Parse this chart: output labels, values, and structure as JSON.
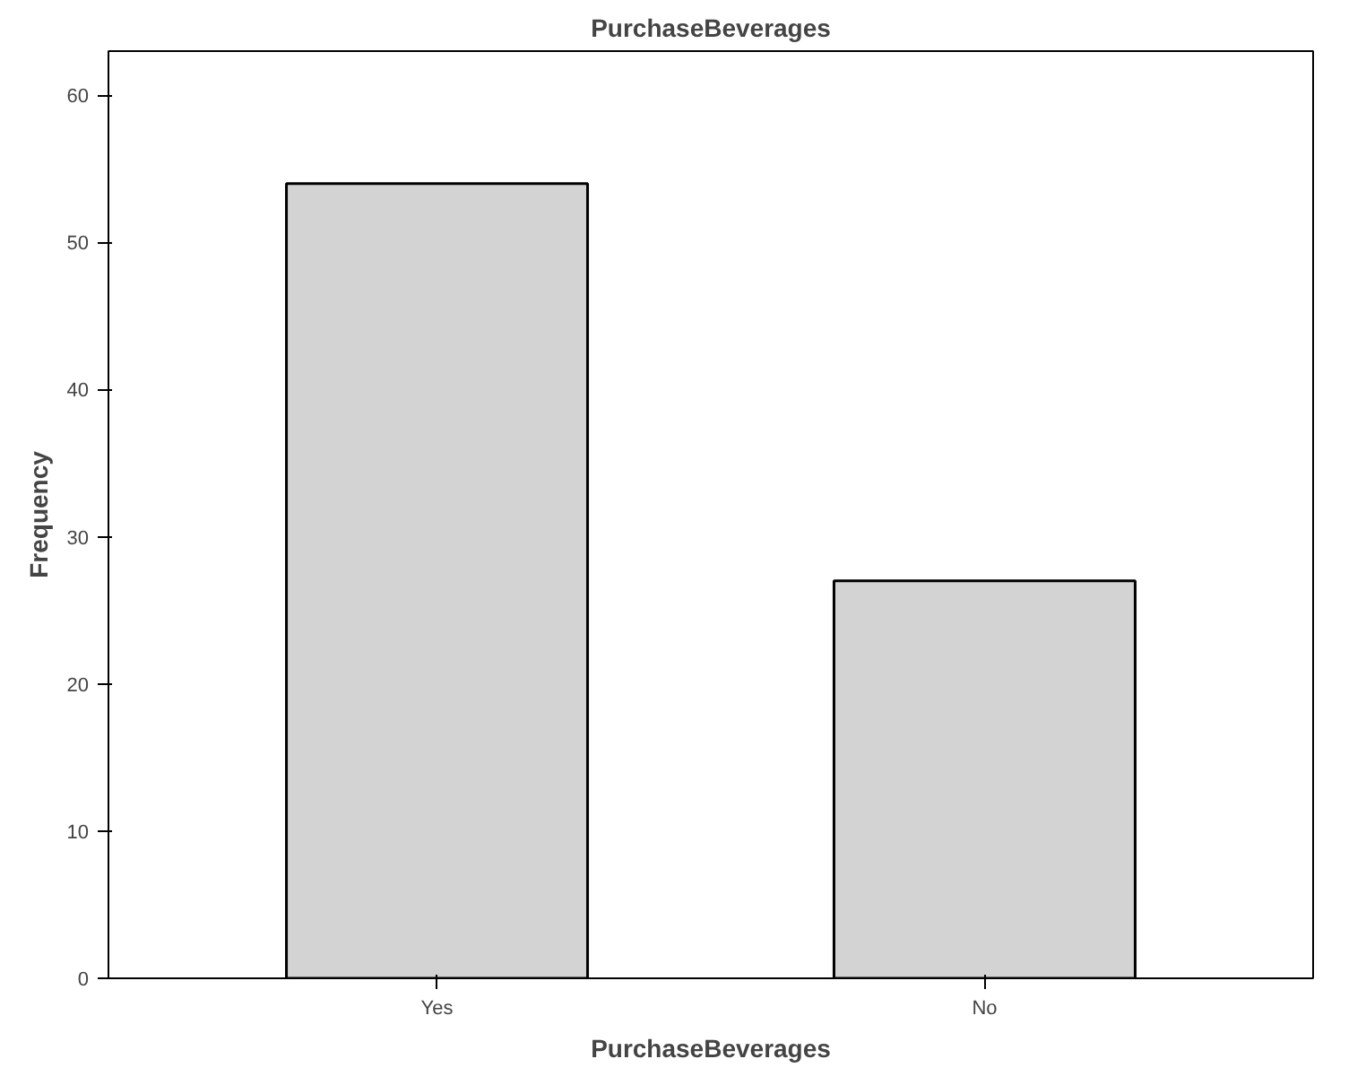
{
  "chart_data": {
    "type": "bar",
    "title": "PurchaseBeverages",
    "xlabel": "PurchaseBeverages",
    "ylabel": "Frequency",
    "categories": [
      "Yes",
      "No"
    ],
    "values": [
      54,
      27
    ],
    "color": "#d3d3d3",
    "ylim": [
      0,
      63
    ],
    "yticks": [
      0,
      10,
      20,
      30,
      40,
      50,
      60
    ],
    "grid": false
  }
}
